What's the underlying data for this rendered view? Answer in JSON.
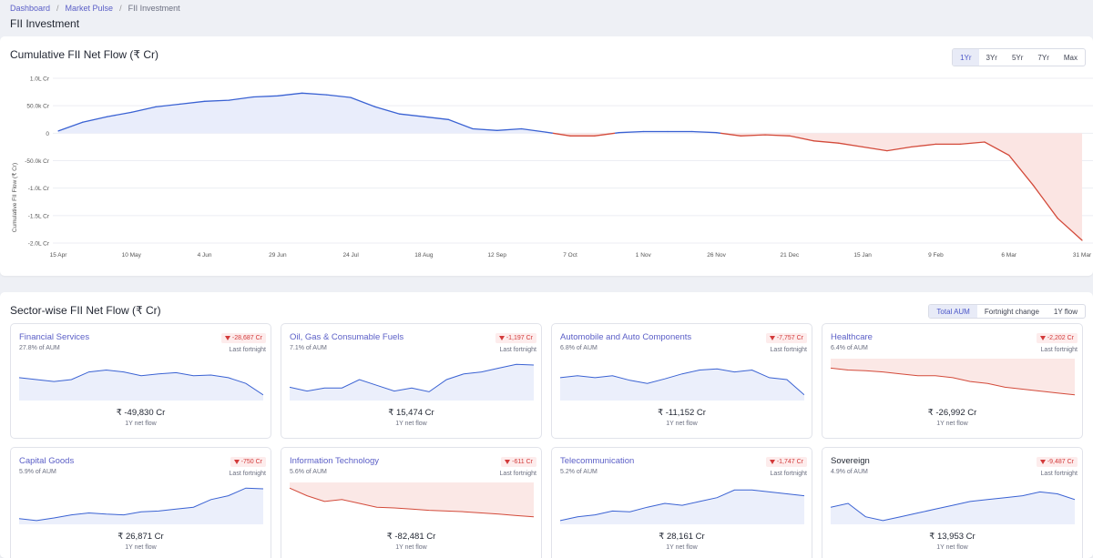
{
  "breadcrumb": {
    "item1": "Dashboard",
    "sep": "/",
    "item2": "Market Pulse",
    "current": "FII Investment"
  },
  "page_title": "FII Investment",
  "top_panel": {
    "title": "Cumulative FII Net Flow (₹ Cr)",
    "range_options": [
      "1Yr",
      "3Yr",
      "5Yr",
      "7Yr",
      "Max"
    ],
    "selected_range": "1Yr"
  },
  "bottom_panel": {
    "title": "Sector-wise FII Net Flow (₹ Cr)",
    "view_options": [
      "Total AUM",
      "Fortnight change",
      "1Y flow"
    ],
    "selected_view": "Total AUM"
  },
  "colors": {
    "positive": "#3a62d3",
    "negative": "#d34a3a",
    "positive_fill": "#e9edfb",
    "negative_fill": "#fbe5e3",
    "accent": "#5b5fc7"
  },
  "chart_data": {
    "type": "area",
    "title": "Cumulative FII Net Flow (₹ Cr)",
    "ylabel": "Cumulative FII Flow (₹ Cr)",
    "y_tick_labels": [
      "1.0L Cr",
      "50.0k Cr",
      "0",
      "-50.0k Cr",
      "-1.0L Cr",
      "-1.5L Cr",
      "-2.0L Cr"
    ],
    "ylim": [
      -200000,
      100000
    ],
    "x_tick_labels": [
      "15 Apr",
      "10 May",
      "4 Jun",
      "29 Jun",
      "24 Jul",
      "18 Aug",
      "12 Sep",
      "7 Oct",
      "1 Nov",
      "26 Nov",
      "21 Dec",
      "15 Jan",
      "9 Feb",
      "6 Mar",
      "31 Mar"
    ],
    "grid": true,
    "legend": "none",
    "series": [
      {
        "x": [
          "15 Apr",
          "22 Apr",
          "30 Apr",
          "10 May",
          "18 May",
          "26 May",
          "4 Jun",
          "12 Jun",
          "20 Jun",
          "29 Jun",
          "7 Jul",
          "15 Jul",
          "24 Jul",
          "2 Aug",
          "10 Aug",
          "18 Aug",
          "26 Aug",
          "4 Sep",
          "12 Sep",
          "20 Sep",
          "28 Sep",
          "7 Oct",
          "15 Oct",
          "24 Oct",
          "1 Nov",
          "9 Nov",
          "17 Nov",
          "26 Nov",
          "4 Dec",
          "12 Dec",
          "21 Dec",
          "29 Dec",
          "6 Jan",
          "15 Jan",
          "23 Jan",
          "31 Jan",
          "9 Feb",
          "17 Feb",
          "25 Feb",
          "6 Mar",
          "14 Mar",
          "22 Mar",
          "31 Mar"
        ],
        "y": [
          4000,
          20000,
          30000,
          38000,
          48000,
          53000,
          58000,
          60000,
          66000,
          68000,
          73000,
          70000,
          65000,
          48000,
          35000,
          30000,
          25000,
          8000,
          5000,
          8000,
          2000,
          -5000,
          -5000,
          1000,
          3000,
          3000,
          3000,
          1000,
          -5000,
          -3000,
          -5000,
          -14000,
          -18000,
          -25000,
          -32000,
          -25000,
          -20000,
          -20000,
          -16000,
          -40000,
          -95000,
          -155000,
          -195000
        ]
      }
    ]
  },
  "cards": [
    {
      "name": "Financial Services",
      "aum": "27.8% of AUM",
      "change": "-28,687 Cr",
      "period": "Last fortnight",
      "value": "₹ -49,830 Cr",
      "sub": "1Y net flow",
      "link": true,
      "trend": "positive",
      "spark": [
        0.45,
        0.5,
        0.55,
        0.5,
        0.3,
        0.25,
        0.3,
        0.4,
        0.35,
        0.32,
        0.4,
        0.38,
        0.45,
        0.6,
        0.9
      ]
    },
    {
      "name": "Oil, Gas & Consumable Fuels",
      "aum": "7.1% of AUM",
      "change": "-1,197 Cr",
      "period": "Last fortnight",
      "value": "₹ 15,474 Cr",
      "sub": "1Y net flow",
      "link": true,
      "trend": "positive",
      "spark": [
        0.7,
        0.8,
        0.72,
        0.72,
        0.5,
        0.65,
        0.8,
        0.72,
        0.82,
        0.5,
        0.35,
        0.3,
        0.2,
        0.1,
        0.12
      ]
    },
    {
      "name": "Automobile and Auto Components",
      "aum": "6.8% of AUM",
      "change": "-7,757 Cr",
      "period": "Last fortnight",
      "value": "₹ -11,152 Cr",
      "sub": "1Y net flow",
      "link": true,
      "trend": "positive",
      "spark": [
        0.45,
        0.4,
        0.45,
        0.4,
        0.52,
        0.6,
        0.48,
        0.35,
        0.25,
        0.22,
        0.3,
        0.25,
        0.45,
        0.5,
        0.9
      ]
    },
    {
      "name": "Healthcare",
      "aum": "6.4% of AUM",
      "change": "-2,202 Cr",
      "period": "Last fortnight",
      "value": "₹ -26,992 Cr",
      "sub": "1Y net flow",
      "link": true,
      "trend": "negative",
      "spark": [
        0.2,
        0.25,
        0.27,
        0.3,
        0.35,
        0.4,
        0.4,
        0.45,
        0.55,
        0.6,
        0.7,
        0.75,
        0.8,
        0.85,
        0.9
      ]
    },
    {
      "name": "Capital Goods",
      "aum": "5.9% of AUM",
      "change": "-750 Cr",
      "period": "Last fortnight",
      "value": "₹ 26,871 Cr",
      "sub": "1Y net flow",
      "link": true,
      "trend": "positive",
      "spark": [
        0.9,
        0.95,
        0.88,
        0.8,
        0.75,
        0.78,
        0.8,
        0.72,
        0.7,
        0.65,
        0.6,
        0.4,
        0.3,
        0.1,
        0.12
      ]
    },
    {
      "name": "Information Technology",
      "aum": "5.6% of AUM",
      "change": "-611 Cr",
      "period": "Last fortnight",
      "value": "₹ -82,481 Cr",
      "sub": "1Y net flow",
      "link": true,
      "trend": "negative",
      "spark": [
        0.1,
        0.3,
        0.45,
        0.4,
        0.5,
        0.6,
        0.62,
        0.65,
        0.68,
        0.7,
        0.72,
        0.75,
        0.78,
        0.82,
        0.85
      ]
    },
    {
      "name": "Telecommunication",
      "aum": "5.2% of AUM",
      "change": "-1,747 Cr",
      "period": "Last fortnight",
      "value": "₹ 28,161 Cr",
      "sub": "1Y net flow",
      "link": true,
      "trend": "positive",
      "spark": [
        0.95,
        0.85,
        0.8,
        0.7,
        0.72,
        0.6,
        0.5,
        0.55,
        0.45,
        0.35,
        0.15,
        0.15,
        0.2,
        0.25,
        0.3
      ]
    },
    {
      "name": "Sovereign",
      "aum": "4.9% of AUM",
      "change": "-9,487 Cr",
      "period": "Last fortnight",
      "value": "₹ 13,953 Cr",
      "sub": "1Y net flow",
      "link": false,
      "trend": "positive",
      "spark": [
        0.6,
        0.5,
        0.85,
        0.95,
        0.85,
        0.75,
        0.65,
        0.55,
        0.45,
        0.4,
        0.35,
        0.3,
        0.2,
        0.25,
        0.4
      ]
    }
  ]
}
